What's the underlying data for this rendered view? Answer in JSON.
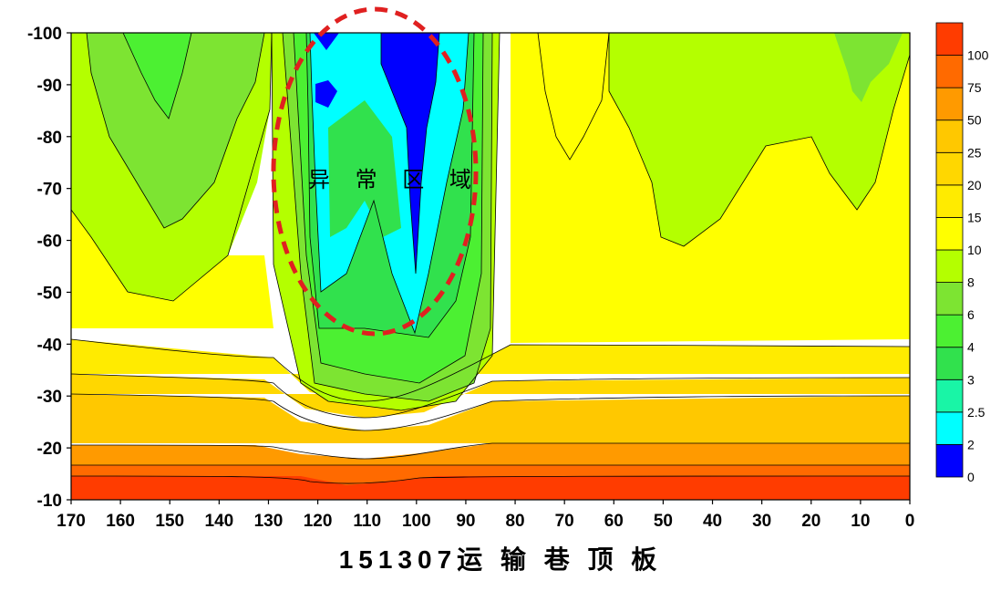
{
  "chart_data": {
    "type": "heatmap",
    "title": "151307运 输 巷 顶 板",
    "annotation": "异 常 区 域",
    "x": {
      "ticks": [
        170,
        160,
        150,
        140,
        130,
        120,
        110,
        100,
        90,
        80,
        70,
        60,
        50,
        40,
        30,
        20,
        10,
        0
      ],
      "range": [
        170,
        0
      ]
    },
    "y": {
      "ticks": [
        -100,
        -90,
        -80,
        -70,
        -60,
        -50,
        -40,
        -30,
        -20,
        -10
      ],
      "range": [
        -100,
        -10
      ]
    },
    "colorbar": {
      "levels": [
        "0",
        "2",
        "2.5",
        "3",
        "4",
        "6",
        "8",
        "10",
        "15",
        "20",
        "25",
        "50",
        "75",
        "100"
      ],
      "colors": [
        "#0000ff",
        "#00ffff",
        "#19f5a6",
        "#31e14d",
        "#4cf032",
        "#7de432",
        "#b4ff00",
        "#ffff00",
        "#ffeb00",
        "#ffd700",
        "#ffc800",
        "#ff9a00",
        "#ff6a00",
        "#ff3c00"
      ]
    },
    "highlight_colors": {
      "ellipse": "#e02020"
    }
  }
}
